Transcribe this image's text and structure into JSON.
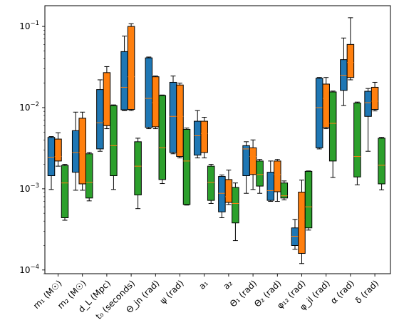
{
  "chart_data": {
    "type": "box",
    "y_scale": "log",
    "ylim": [
      9e-05,
      0.18
    ],
    "y_ticks": [
      {
        "base": "10",
        "exp": "−1",
        "value": 0.1
      },
      {
        "base": "10",
        "exp": "−2",
        "value": 0.01
      },
      {
        "base": "10",
        "exp": "−3",
        "value": 0.001
      },
      {
        "base": "10",
        "exp": "−4",
        "value": 0.0001
      }
    ],
    "series_colors": [
      "#1f77b4",
      "#ff7f0e",
      "#2ca02c"
    ],
    "median_color": "#ff7f0e",
    "categories": [
      {
        "label": "m₁ (M☉)",
        "boxes": [
          {
            "min": 0.00098,
            "q1": 0.00145,
            "med": 0.00245,
            "q3": 0.0043,
            "max": 0.0044
          },
          {
            "min": 0.0019,
            "q1": 0.0022,
            "med": 0.0025,
            "q3": 0.0041,
            "max": 0.0049
          },
          {
            "min": 0.00041,
            "q1": 0.00044,
            "med": 0.00118,
            "q3": 0.00194,
            "max": 0.002
          }
        ]
      },
      {
        "label": "m₂ (M☉)",
        "boxes": [
          {
            "min": 0.00096,
            "q1": 0.0016,
            "med": 0.0028,
            "q3": 0.0052,
            "max": 0.0088
          },
          {
            "min": 0.00096,
            "q1": 0.00115,
            "med": 0.0028,
            "q3": 0.0074,
            "max": 0.0088
          },
          {
            "min": 0.00071,
            "q1": 0.00077,
            "med": 0.0012,
            "q3": 0.0027,
            "max": 0.0028
          }
        ]
      },
      {
        "label": "d_L (Mpc)",
        "boxes": [
          {
            "min": 0.0029,
            "q1": 0.0031,
            "med": 0.0065,
            "q3": 0.0167,
            "max": 0.022
          },
          {
            "min": 0.0055,
            "q1": 0.006,
            "med": 0.0068,
            "q3": 0.027,
            "max": 0.032
          },
          {
            "min": 0.00098,
            "q1": 0.00145,
            "med": 0.0034,
            "q3": 0.0106,
            "max": 0.0108
          }
        ]
      },
      {
        "label": "t₀ (seconds)",
        "boxes": [
          {
            "min": 0.0092,
            "q1": 0.0094,
            "med": 0.0178,
            "q3": 0.049,
            "max": 0.076
          },
          {
            "min": 0.0092,
            "q1": 0.0095,
            "med": 0.024,
            "q3": 0.1,
            "max": 0.108
          },
          {
            "min": 0.00057,
            "q1": 0.00084,
            "med": 0.0019,
            "q3": 0.0038,
            "max": 0.0042
          }
        ]
      },
      {
        "label": "Θ_jn (rad)",
        "boxes": [
          {
            "min": 0.0055,
            "q1": 0.0057,
            "med": 0.013,
            "q3": 0.041,
            "max": 0.042
          },
          {
            "min": 0.0055,
            "q1": 0.0058,
            "med": 0.0115,
            "q3": 0.024,
            "max": 0.0245
          },
          {
            "min": 0.00116,
            "q1": 0.0013,
            "med": 0.0032,
            "q3": 0.0141,
            "max": 0.0143
          }
        ]
      },
      {
        "label": "ψ (rad)",
        "boxes": [
          {
            "min": 0.0027,
            "q1": 0.0028,
            "med": 0.0078,
            "q3": 0.0205,
            "max": 0.0245
          },
          {
            "min": 0.0024,
            "q1": 0.0025,
            "med": 0.0078,
            "q3": 0.019,
            "max": 0.02
          },
          {
            "min": 0.00063,
            "q1": 0.00064,
            "med": 0.0022,
            "q3": 0.0054,
            "max": 0.0056
          }
        ]
      },
      {
        "label": "a₁",
        "boxes": [
          {
            "min": 0.0024,
            "q1": 0.0026,
            "med": 0.0045,
            "q3": 0.0068,
            "max": 0.0092
          },
          {
            "min": 0.0024,
            "q1": 0.0028,
            "med": 0.0048,
            "q3": 0.0068,
            "max": 0.0076
          },
          {
            "min": 0.00066,
            "q1": 0.00072,
            "med": 0.0012,
            "q3": 0.0019,
            "max": 0.002
          }
        ]
      },
      {
        "label": "a₂",
        "boxes": [
          {
            "min": 0.00044,
            "q1": 0.00052,
            "med": 0.00088,
            "q3": 0.00142,
            "max": 0.00148
          },
          {
            "min": 0.00064,
            "q1": 0.00068,
            "med": 0.0008,
            "q3": 0.0013,
            "max": 0.0017
          },
          {
            "min": 0.00023,
            "q1": 0.00038,
            "med": 0.00066,
            "q3": 0.00104,
            "max": 0.00118
          }
        ]
      },
      {
        "label": "Θ₁ (rad)",
        "boxes": [
          {
            "min": 0.00088,
            "q1": 0.00145,
            "med": 0.0031,
            "q3": 0.0034,
            "max": 0.0038
          },
          {
            "min": 0.00098,
            "q1": 0.0015,
            "med": 0.0025,
            "q3": 0.0032,
            "max": 0.004
          },
          {
            "min": 0.00088,
            "q1": 0.00108,
            "med": 0.0015,
            "q3": 0.0022,
            "max": 0.0023
          }
        ]
      },
      {
        "label": "Θ₂ (rad)",
        "boxes": [
          {
            "min": 0.0007,
            "q1": 0.00072,
            "med": 0.00095,
            "q3": 0.0016,
            "max": 0.0022
          },
          {
            "min": 0.0007,
            "q1": 0.00092,
            "med": 0.0015,
            "q3": 0.0022,
            "max": 0.0023
          },
          {
            "min": 0.00073,
            "q1": 0.00077,
            "med": 0.00082,
            "q3": 0.00118,
            "max": 0.00125
          }
        ]
      },
      {
        "label": "φ₁₂ (rad)",
        "boxes": [
          {
            "min": 0.00018,
            "q1": 0.0002,
            "med": 0.00026,
            "q3": 0.00033,
            "max": 0.00042
          },
          {
            "min": 0.00012,
            "q1": 0.00016,
            "med": 0.00042,
            "q3": 0.00091,
            "max": 0.00128
          },
          {
            "min": 0.00031,
            "q1": 0.00033,
            "med": 0.0006,
            "q3": 0.00164,
            "max": 0.00166
          }
        ]
      },
      {
        "label": "φ_jl (rad)",
        "boxes": [
          {
            "min": 0.0031,
            "q1": 0.0032,
            "med": 0.01,
            "q3": 0.023,
            "max": 0.0235
          },
          {
            "min": 0.0055,
            "q1": 0.0057,
            "med": 0.013,
            "q3": 0.0195,
            "max": 0.0235
          },
          {
            "min": 0.00138,
            "q1": 0.0022,
            "med": 0.0064,
            "q3": 0.0156,
            "max": 0.016
          }
        ]
      },
      {
        "label": "α (rad)",
        "boxes": [
          {
            "min": 0.0106,
            "q1": 0.0163,
            "med": 0.025,
            "q3": 0.039,
            "max": 0.072
          },
          {
            "min": 0.022,
            "q1": 0.0235,
            "med": 0.036,
            "q3": 0.06,
            "max": 0.128
          },
          {
            "min": 0.00112,
            "q1": 0.0014,
            "med": 0.0025,
            "q3": 0.0114,
            "max": 0.0117
          }
        ]
      },
      {
        "label": "δ (rad)",
        "boxes": [
          {
            "min": 0.0029,
            "q1": 0.0078,
            "med": 0.0115,
            "q3": 0.0159,
            "max": 0.0172
          },
          {
            "min": 0.0091,
            "q1": 0.0095,
            "med": 0.012,
            "q3": 0.0178,
            "max": 0.0205
          },
          {
            "min": 0.00097,
            "q1": 0.00115,
            "med": 0.00195,
            "q3": 0.0042,
            "max": 0.0043
          }
        ]
      }
    ]
  }
}
